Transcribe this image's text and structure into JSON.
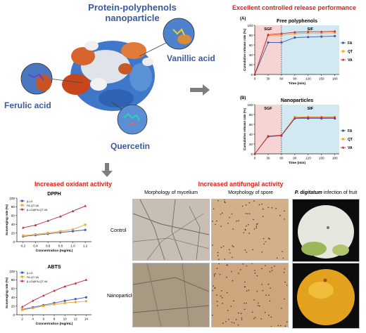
{
  "protein": {
    "title_line1": "Protein-polyphenols",
    "title_line2": "nanoparticle",
    "label_vanillic": "Vanillic acid",
    "label_ferulic": "Ferulic acid",
    "label_quercetin": "Quercetin"
  },
  "release": {
    "heading": "Excellent controlled release performance",
    "panel_a_tag": "(A)",
    "panel_b_tag": "(B)"
  },
  "oxidant": {
    "heading": "Increased oxidant activity"
  },
  "antifungal": {
    "heading": "Increased antifungal activity",
    "col_mycelium": "Morphology of mycelium",
    "col_spore": "Morphology of spore",
    "col_fruit_italic": "P. digitatum",
    "col_fruit_rest": " infection of fruit",
    "row_control": "Control",
    "row_nano": "Nanoparticles"
  },
  "colors": {
    "FA": "#3b5ea8",
    "QT": "#f5a23c",
    "VA": "#c0283a",
    "sgf_band": "#f7d4d4",
    "sif_band": "#d3e9f2"
  },
  "chart_data": [
    {
      "id": "free",
      "type": "line",
      "title": "Free polyphenols",
      "xlabel": "Time (min)",
      "ylabel": "Cumulative release rate (%)",
      "x": [
        0,
        30,
        60,
        90,
        120,
        150,
        180
      ],
      "xticks": [
        0,
        30,
        60,
        90,
        120,
        150,
        180
      ],
      "ylim": [
        0,
        100
      ],
      "yticks": [
        0,
        20,
        40,
        60,
        80,
        100
      ],
      "phases": [
        "SGF",
        "SIF"
      ],
      "phase_split": 60,
      "legend": "right",
      "series": [
        {
          "name": "FA",
          "values": [
            0,
            65,
            65,
            75,
            76,
            77,
            78
          ]
        },
        {
          "name": "QT",
          "values": [
            0,
            79,
            80,
            83,
            84,
            84,
            85
          ]
        },
        {
          "name": "VA",
          "values": [
            0,
            81,
            83,
            86,
            87,
            87,
            88
          ]
        }
      ]
    },
    {
      "id": "nano",
      "type": "line",
      "title": "Nanoparticles",
      "xlabel": "Time (min)",
      "ylabel": "Cumulative release rate (%)",
      "x": [
        0,
        30,
        60,
        90,
        120,
        150,
        180
      ],
      "xticks": [
        0,
        30,
        60,
        90,
        120,
        150,
        180
      ],
      "ylim": [
        0,
        100
      ],
      "yticks": [
        0,
        20,
        40,
        60,
        80,
        100
      ],
      "phases": [
        "SGF",
        "SIF"
      ],
      "phase_split": 60,
      "legend": "right",
      "series": [
        {
          "name": "FA",
          "values": [
            0,
            35,
            37,
            72,
            72,
            72,
            72
          ]
        },
        {
          "name": "QT",
          "values": [
            0,
            36,
            38,
            75,
            75,
            75,
            75
          ]
        },
        {
          "name": "VA",
          "values": [
            0,
            36,
            38,
            73,
            74,
            74,
            74
          ]
        }
      ]
    },
    {
      "id": "dpph",
      "type": "line",
      "title": "DPPH",
      "xlabel": "Concentration (mg/mL)",
      "ylabel": "Scavenging rate (%)",
      "x": [
        0.2,
        0.4,
        0.6,
        0.8,
        1.0,
        1.2
      ],
      "xticks": [
        0.2,
        0.4,
        0.6,
        0.8,
        1.0,
        1.2
      ],
      "ylim": [
        0,
        100
      ],
      "yticks": [
        0,
        20,
        40,
        60,
        80,
        100
      ],
      "legend": "top-left",
      "series": [
        {
          "name": "β-LG",
          "values": [
            12,
            15,
            18,
            21,
            24,
            27
          ]
        },
        {
          "name": "FA-QT-VA",
          "values": [
            14,
            17,
            20,
            24,
            28,
            39
          ]
        },
        {
          "name": "β-LG@FA-QT-VA",
          "values": [
            32,
            38,
            48,
            58,
            70,
            82
          ]
        }
      ]
    },
    {
      "id": "abts",
      "type": "line",
      "title": "ABTS",
      "xlabel": "Concentration (mg/mL)",
      "ylabel": "Scavenging rate (%)",
      "x": [
        2,
        4,
        6,
        8,
        10,
        12,
        14
      ],
      "xticks": [
        2,
        4,
        6,
        8,
        10,
        12,
        14
      ],
      "ylim": [
        0,
        100
      ],
      "yticks": [
        0,
        20,
        40,
        60,
        80,
        100
      ],
      "legend": "top-left",
      "series": [
        {
          "name": "β-LG",
          "values": [
            12,
            17,
            22,
            27,
            32,
            36,
            40
          ]
        },
        {
          "name": "FA-QT-VA",
          "values": [
            11,
            15,
            20,
            24,
            27,
            29,
            31
          ]
        },
        {
          "name": "β-LG@FA-QT-VA",
          "values": [
            18,
            32,
            44,
            55,
            65,
            72,
            80
          ]
        }
      ]
    }
  ]
}
